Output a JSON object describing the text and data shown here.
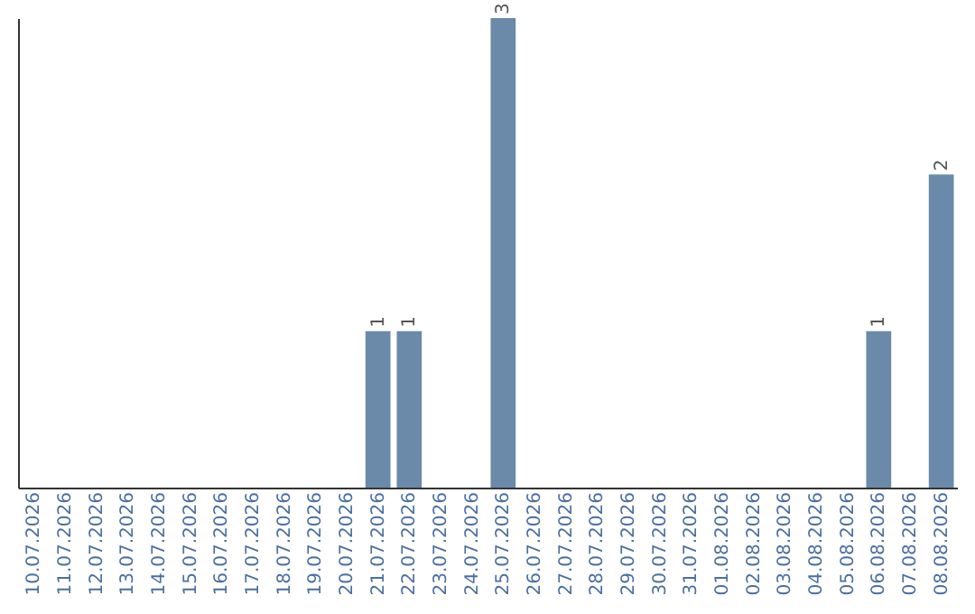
{
  "chart_data": {
    "type": "bar",
    "categories": [
      "10.07.2026",
      "11.07.2026",
      "12.07.2026",
      "13.07.2026",
      "14.07.2026",
      "15.07.2026",
      "16.07.2026",
      "17.07.2026",
      "18.07.2026",
      "19.07.2026",
      "20.07.2026",
      "21.07.2026",
      "22.07.2026",
      "23.07.2026",
      "24.07.2026",
      "25.07.2026",
      "26.07.2026",
      "27.07.2026",
      "28.07.2026",
      "29.07.2026",
      "30.07.2026",
      "31.07.2026",
      "01.08.2026",
      "02.08.2026",
      "03.08.2026",
      "04.08.2026",
      "05.08.2026",
      "06.08.2026",
      "07.08.2026",
      "08.08.2026"
    ],
    "values": [
      0,
      0,
      0,
      0,
      0,
      0,
      0,
      0,
      0,
      0,
      0,
      1,
      1,
      0,
      0,
      3,
      0,
      0,
      0,
      0,
      0,
      0,
      0,
      0,
      0,
      0,
      0,
      1,
      0,
      2
    ],
    "value_labels": [
      null,
      null,
      null,
      null,
      null,
      null,
      null,
      null,
      null,
      null,
      null,
      "1",
      "1",
      null,
      null,
      "3",
      null,
      null,
      null,
      null,
      null,
      null,
      null,
      null,
      null,
      null,
      null,
      "1",
      null,
      "2"
    ],
    "color": "#6b8aaa",
    "grid": false
  }
}
